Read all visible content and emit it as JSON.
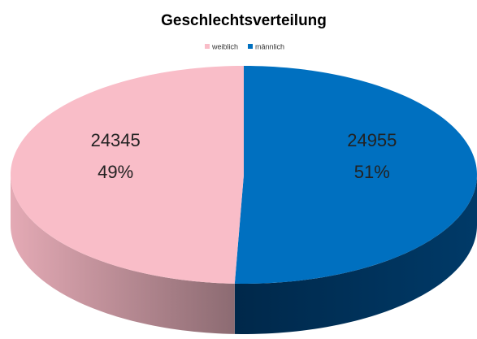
{
  "chart_data": {
    "type": "pie3d",
    "title": "Geschlechtsverteilung",
    "categories": [
      "weiblich",
      "männlich"
    ],
    "values": [
      24345,
      24955
    ],
    "percent_labels": [
      "49%",
      "51%"
    ],
    "colors": [
      "#f9bdc8",
      "#0070c0"
    ],
    "legend": "top"
  }
}
